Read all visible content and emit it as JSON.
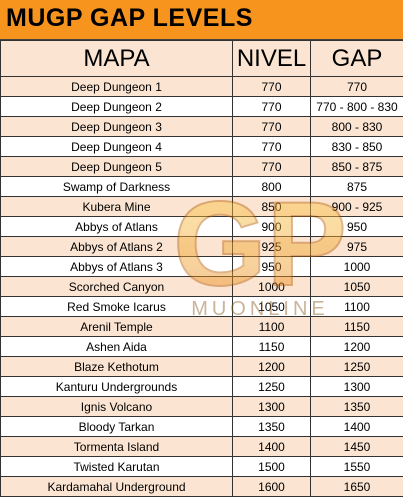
{
  "title": "MUGP GAP LEVELS",
  "headers": [
    "MAPA",
    "NIVEL",
    "GAP"
  ],
  "rows": [
    [
      "Deep Dungeon 1",
      "770",
      "770"
    ],
    [
      "Deep Dungeon 2",
      "770",
      "770 - 800 - 830"
    ],
    [
      "Deep Dungeon 3",
      "770",
      "800 - 830"
    ],
    [
      "Deep Dungeon 4",
      "770",
      "830 - 850"
    ],
    [
      "Deep Dungeon 5",
      "770",
      "850 - 875"
    ],
    [
      "Swamp of Darkness",
      "800",
      "875"
    ],
    [
      "Kubera Mine",
      "850",
      "900 - 925"
    ],
    [
      "Abbys of Atlans",
      "900",
      "950"
    ],
    [
      "Abbys of Atlans 2",
      "925",
      "975"
    ],
    [
      "Abbys of Atlans 3",
      "950",
      "1000"
    ],
    [
      "Scorched Canyon",
      "1000",
      "1050"
    ],
    [
      "Red Smoke Icarus",
      "1050",
      "1100"
    ],
    [
      "Arenil Temple",
      "1100",
      "1150"
    ],
    [
      "Ashen Aida",
      "1150",
      "1200"
    ],
    [
      "Blaze Kethotum",
      "1200",
      "1250"
    ],
    [
      "Kanturu Undergrounds",
      "1250",
      "1300"
    ],
    [
      "Ignis Volcano",
      "1300",
      "1350"
    ],
    [
      "Bloody Tarkan",
      "1350",
      "1400"
    ],
    [
      "Tormenta Island",
      "1400",
      "1450"
    ],
    [
      "Twisted Karutan",
      "1500",
      "1550"
    ],
    [
      "Kardamahal Underground",
      "1600",
      "1650"
    ]
  ],
  "watermark": {
    "logo_text": "GP",
    "tagline": "MUONLINE"
  },
  "colors": {
    "title_bg": "#f7941d",
    "row_odd": "#fbe5d2",
    "row_even": "#ffffff",
    "watermark": "#f2a31b"
  }
}
